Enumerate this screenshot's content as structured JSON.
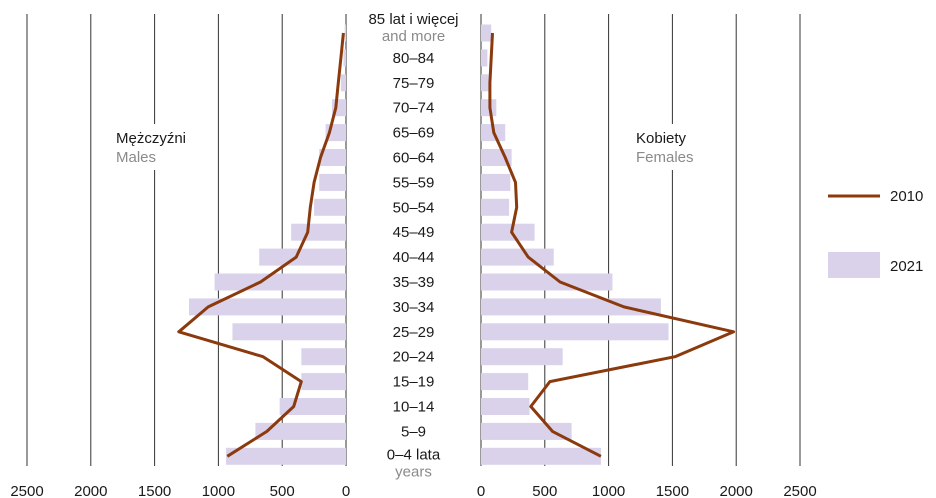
{
  "chart_data": {
    "type": "bar",
    "categories": [
      "85 lat i więcej|and more",
      "80–84",
      "75–79",
      "70–74",
      "65–69",
      "60–64",
      "55–59",
      "50–54",
      "45–49",
      "40–44",
      "35–39",
      "30–34",
      "25–29",
      "20–24",
      "15–19",
      "10–14",
      "5–9",
      "0–4 lata|years"
    ],
    "category_lines": [
      [
        "85 lat i więcej",
        "and more"
      ],
      [
        "80–84"
      ],
      [
        "75–79"
      ],
      [
        "70–74"
      ],
      [
        "65–69"
      ],
      [
        "60–64"
      ],
      [
        "55–59"
      ],
      [
        "50–54"
      ],
      [
        "45–49"
      ],
      [
        "40–44"
      ],
      [
        "35–39"
      ],
      [
        "30–34"
      ],
      [
        "25–29"
      ],
      [
        "20–24"
      ],
      [
        "15–19"
      ],
      [
        "10–14"
      ],
      [
        "5–9"
      ],
      [
        "0–4 lata",
        "years"
      ]
    ],
    "panels": [
      {
        "title": "Mężczyźni",
        "subtitle": "Males",
        "direction": "left",
        "xlim": [
          0,
          2500
        ],
        "ticks": [
          "2500",
          "2000",
          "1500",
          "1000",
          "500",
          "0"
        ],
        "tick_values": [
          2500,
          2000,
          1500,
          1000,
          500,
          0
        ],
        "series": [
          {
            "name": "2021",
            "kind": "bar",
            "values": [
              10,
              20,
              40,
              110,
              160,
              210,
              210,
              250,
              430,
              680,
              1030,
              1230,
              890,
              350,
              350,
              520,
              710,
              940
            ]
          },
          {
            "name": "2010",
            "kind": "line",
            "values": [
              20,
              40,
              60,
              80,
              130,
              200,
              250,
              280,
              300,
              390,
              670,
              1080,
              1310,
              650,
              350,
              410,
              620,
              930
            ]
          }
        ]
      },
      {
        "title": "Kobiety",
        "subtitle": "Females",
        "direction": "right",
        "xlim": [
          0,
          2500
        ],
        "ticks": [
          "0",
          "500",
          "1000",
          "1500",
          "2000",
          "2500"
        ],
        "tick_values": [
          0,
          500,
          1000,
          1500,
          2000,
          2500
        ],
        "series": [
          {
            "name": "2021",
            "kind": "bar",
            "values": [
              80,
              50,
              60,
              120,
              190,
              240,
              230,
              220,
              420,
              570,
              1030,
              1410,
              1470,
              640,
              370,
              380,
              710,
              940
            ]
          },
          {
            "name": "2010",
            "kind": "line",
            "values": [
              90,
              80,
              70,
              70,
              100,
              190,
              270,
              280,
              240,
              370,
              620,
              1120,
              1980,
              1520,
              540,
              390,
              560,
              940
            ]
          }
        ]
      }
    ],
    "legend": {
      "placement": "right",
      "items": [
        {
          "label": "2010",
          "kind": "line",
          "color": "#8B3A0E"
        },
        {
          "label": "2021",
          "kind": "bar",
          "color": "#D9D2EA"
        }
      ]
    },
    "grid": true,
    "colors": {
      "bar": "#D9D2EA",
      "line": "#8B3A0E",
      "grid": "#333333"
    }
  }
}
